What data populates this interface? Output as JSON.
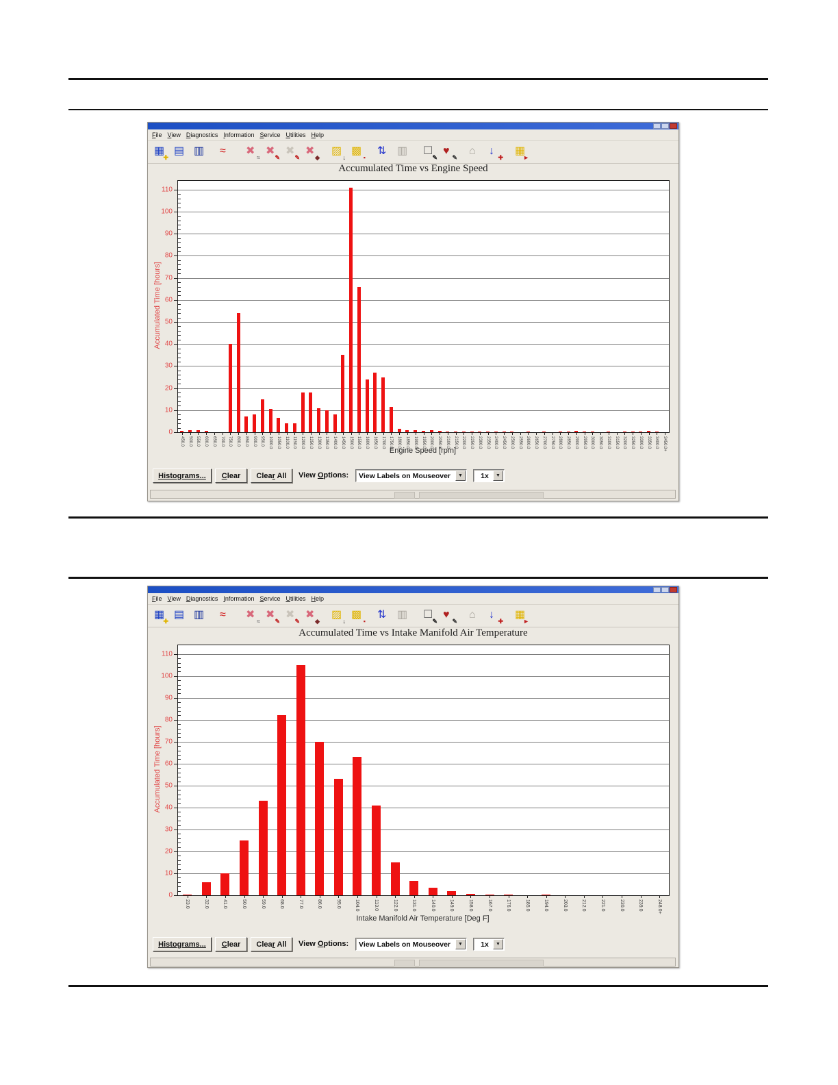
{
  "icons": {
    "dropdown_arrow": "▼"
  },
  "windows": [
    {
      "name": "engine-speed-histogram-window",
      "menu": [
        {
          "label": "File",
          "u": 0
        },
        {
          "label": "View",
          "u": 0
        },
        {
          "label": "Diagnostics",
          "u": 0
        },
        {
          "label": "Information",
          "u": 0
        },
        {
          "label": "Service",
          "u": 0
        },
        {
          "label": "Utilities",
          "u": 0
        },
        {
          "label": "Help",
          "u": 0
        }
      ],
      "toolbar": [
        {
          "name": "save-icon",
          "g1": "▦",
          "c1": "#1b3fc4",
          "g2": "✚",
          "c2": "#e0b400"
        },
        {
          "name": "open-report-icon",
          "g1": "▤",
          "c1": "#1b3fc4"
        },
        {
          "name": "print-icon",
          "g1": "▥",
          "c1": "#16309a"
        },
        {
          "sep": true
        },
        {
          "name": "waveform-icon",
          "g1": "≈",
          "c1": "#d01818"
        },
        {
          "sep": true
        },
        {
          "name": "histogram-delete-icon",
          "g1": "✖",
          "c1": "#d8687a",
          "g2": "≈",
          "c2": "#888888"
        },
        {
          "name": "histogram-edit-icon",
          "g1": "✖",
          "c1": "#d8687a",
          "g2": "✎",
          "c2": "#c02020"
        },
        {
          "name": "histogram-view-disabled-icon",
          "g1": "✖",
          "c1": "#c9c4ba",
          "g2": "✎",
          "c2": "#c02020"
        },
        {
          "name": "histogram-select-icon",
          "g1": "✖",
          "c1": "#d8687a",
          "g2": "◆",
          "c2": "#7a2a2a"
        },
        {
          "sep": true
        },
        {
          "name": "export-data-icon",
          "g1": "▨",
          "c1": "#e0b400",
          "g2": "↓",
          "c2": "#333333"
        },
        {
          "name": "snapshot-icon",
          "g1": "▩",
          "c1": "#e0b400",
          "g2": "▪",
          "c2": "#c02020"
        },
        {
          "sep": true
        },
        {
          "name": "compare-icon",
          "g1": "⇅",
          "c1": "#2233cc"
        },
        {
          "name": "print-preview-disabled-icon",
          "g1": "▥",
          "c1": "#a8a49c"
        },
        {
          "sep": true
        },
        {
          "name": "report-icon",
          "g1": "☐",
          "c1": "#666666",
          "g2": "✎",
          "c2": "#222222"
        },
        {
          "name": "service-icon",
          "g1": "♥",
          "c1": "#b02020",
          "g2": "✎",
          "c2": "#333333"
        },
        {
          "sep": true
        },
        {
          "name": "search-disabled-icon",
          "g1": "⌂",
          "c1": "#a8a49c"
        },
        {
          "name": "probe-icon",
          "g1": "↓",
          "c1": "#2233cc",
          "g2": "✚",
          "c2": "#c02020"
        },
        {
          "sep": true
        },
        {
          "name": "exit-icon",
          "g1": "▦",
          "c1": "#e0b400",
          "g2": "►",
          "c2": "#c02020"
        }
      ],
      "controls": {
        "histograms": {
          "label": "Histograms...",
          "u": -2
        },
        "clear": {
          "label": "Clear",
          "u": 0
        },
        "clear_all": {
          "label": "Clear All",
          "u": 4
        },
        "view_options": {
          "label": "View Options:",
          "u": 5
        },
        "view_mode": "View Labels on Mouseover",
        "zoom": "1x"
      }
    },
    {
      "name": "intake-air-temp-histogram-window",
      "menu": [
        {
          "label": "File",
          "u": 0
        },
        {
          "label": "View",
          "u": 0
        },
        {
          "label": "Diagnostics",
          "u": 0
        },
        {
          "label": "Information",
          "u": 0
        },
        {
          "label": "Service",
          "u": 0
        },
        {
          "label": "Utilities",
          "u": 0
        },
        {
          "label": "Help",
          "u": 0
        }
      ],
      "toolbar": [
        {
          "name": "save-icon",
          "g1": "▦",
          "c1": "#1b3fc4",
          "g2": "✚",
          "c2": "#e0b400"
        },
        {
          "name": "open-report-icon",
          "g1": "▤",
          "c1": "#1b3fc4"
        },
        {
          "name": "print-icon",
          "g1": "▥",
          "c1": "#16309a"
        },
        {
          "sep": true
        },
        {
          "name": "waveform-icon",
          "g1": "≈",
          "c1": "#d01818"
        },
        {
          "sep": true
        },
        {
          "name": "histogram-delete-icon",
          "g1": "✖",
          "c1": "#d8687a",
          "g2": "≈",
          "c2": "#888888"
        },
        {
          "name": "histogram-edit-icon",
          "g1": "✖",
          "c1": "#d8687a",
          "g2": "✎",
          "c2": "#c02020"
        },
        {
          "name": "histogram-view-disabled-icon",
          "g1": "✖",
          "c1": "#c9c4ba",
          "g2": "✎",
          "c2": "#c02020"
        },
        {
          "name": "histogram-select-icon",
          "g1": "✖",
          "c1": "#d8687a",
          "g2": "◆",
          "c2": "#7a2a2a"
        },
        {
          "sep": true
        },
        {
          "name": "export-data-icon",
          "g1": "▨",
          "c1": "#e0b400",
          "g2": "↓",
          "c2": "#333333"
        },
        {
          "name": "snapshot-icon",
          "g1": "▩",
          "c1": "#e0b400",
          "g2": "▪",
          "c2": "#c02020"
        },
        {
          "sep": true
        },
        {
          "name": "compare-icon",
          "g1": "⇅",
          "c1": "#2233cc"
        },
        {
          "name": "print-preview-disabled-icon",
          "g1": "▥",
          "c1": "#a8a49c"
        },
        {
          "sep": true
        },
        {
          "name": "report-icon",
          "g1": "☐",
          "c1": "#666666",
          "g2": "✎",
          "c2": "#222222"
        },
        {
          "name": "service-icon",
          "g1": "♥",
          "c1": "#b02020",
          "g2": "✎",
          "c2": "#333333"
        },
        {
          "sep": true
        },
        {
          "name": "search-disabled-icon",
          "g1": "⌂",
          "c1": "#a8a49c"
        },
        {
          "name": "probe-icon",
          "g1": "↓",
          "c1": "#2233cc",
          "g2": "✚",
          "c2": "#c02020"
        },
        {
          "sep": true
        },
        {
          "name": "exit-icon",
          "g1": "▦",
          "c1": "#e0b400",
          "g2": "►",
          "c2": "#c02020"
        }
      ],
      "controls": {
        "histograms": {
          "label": "Histograms...",
          "u": -2
        },
        "clear": {
          "label": "Clear",
          "u": 0
        },
        "clear_all": {
          "label": "Clear All",
          "u": 4
        },
        "view_options": {
          "label": "View Options:",
          "u": 5
        },
        "view_mode": "View Labels on Mouseover",
        "zoom": "1x"
      }
    }
  ],
  "chart_data": [
    {
      "type": "bar",
      "title": "Accumulated Time vs Engine Speed",
      "xlabel": "Engine Speed [rpm]",
      "ylabel": "Accumulated Time [hours]",
      "ylim": [
        0,
        114
      ],
      "yticks": [
        0,
        10,
        20,
        30,
        40,
        50,
        60,
        70,
        80,
        90,
        100,
        110
      ],
      "grid": true,
      "legend": null,
      "bar_color": "#ee1212",
      "axis_label_color": "#e04848",
      "categories": [
        "450.0",
        "500.0",
        "550.0",
        "600.0",
        "650.0",
        "700.0",
        "750.0",
        "800.0",
        "850.0",
        "900.0",
        "950.0",
        "1000.0",
        "1050.0",
        "1100.0",
        "1150.0",
        "1200.0",
        "1250.0",
        "1300.0",
        "1350.0",
        "1400.0",
        "1450.0",
        "1500.0",
        "1550.0",
        "1600.0",
        "1650.0",
        "1700.0",
        "1750.0",
        "1800.0",
        "1850.0",
        "1900.0",
        "1950.0",
        "2000.0",
        "2050.0",
        "2100.0",
        "2150.0",
        "2200.0",
        "2250.0",
        "2300.0",
        "2350.0",
        "2400.0",
        "2450.0",
        "2500.0",
        "2550.0",
        "2600.0",
        "2650.0",
        "2700.0",
        "2750.0",
        "2800.0",
        "2850.0",
        "2900.0",
        "2950.0",
        "3000.0",
        "3050.0",
        "3100.0",
        "3150.0",
        "3200.0",
        "3250.0",
        "3300.0",
        "3350.0",
        "3400.0",
        "3450.0+"
      ],
      "values": [
        0.5,
        1,
        1,
        0.5,
        0,
        0,
        40,
        54,
        7,
        8,
        15,
        10.5,
        6.5,
        4,
        4,
        18,
        18,
        11,
        10,
        8,
        35,
        111,
        66,
        24,
        27,
        25,
        11.5,
        1.5,
        1,
        0.8,
        0.6,
        1,
        0.5,
        0.4,
        0.3,
        0.3,
        0.2,
        0.2,
        0.1,
        0.1,
        0.1,
        0.1,
        0,
        0.1,
        0,
        0.1,
        0,
        0.2,
        0.4,
        0.5,
        0.4,
        0.1,
        0,
        0.1,
        0,
        0.2,
        0.1,
        0.4,
        0.5,
        0.4,
        0
      ]
    },
    {
      "type": "bar",
      "title": "Accumulated Time vs Intake Manifold Air Temperature",
      "xlabel": "Intake Manifold Air Temperature [Deg F]",
      "ylabel": "Accumulated Time [hours]",
      "ylim": [
        0,
        114
      ],
      "yticks": [
        0,
        10,
        20,
        30,
        40,
        50,
        60,
        70,
        80,
        90,
        100,
        110
      ],
      "grid": true,
      "legend": null,
      "bar_color": "#ee1212",
      "axis_label_color": "#e04848",
      "categories": [
        "23.0",
        "32.0",
        "41.0",
        "50.0",
        "59.0",
        "68.0",
        "77.0",
        "86.0",
        "95.0",
        "104.0",
        "113.0",
        "122.0",
        "131.0",
        "140.0",
        "149.0",
        "158.0",
        "167.0",
        "176.0",
        "185.0",
        "194.0",
        "203.0",
        "212.0",
        "221.0",
        "230.0",
        "239.0",
        "248.0+"
      ],
      "values": [
        0.3,
        6,
        10,
        25,
        43,
        82,
        105,
        70,
        53,
        63,
        41,
        15,
        6.5,
        3.5,
        2,
        0.7,
        0.3,
        0.1,
        0,
        0.1,
        0,
        0,
        0,
        0,
        0,
        0
      ]
    }
  ]
}
